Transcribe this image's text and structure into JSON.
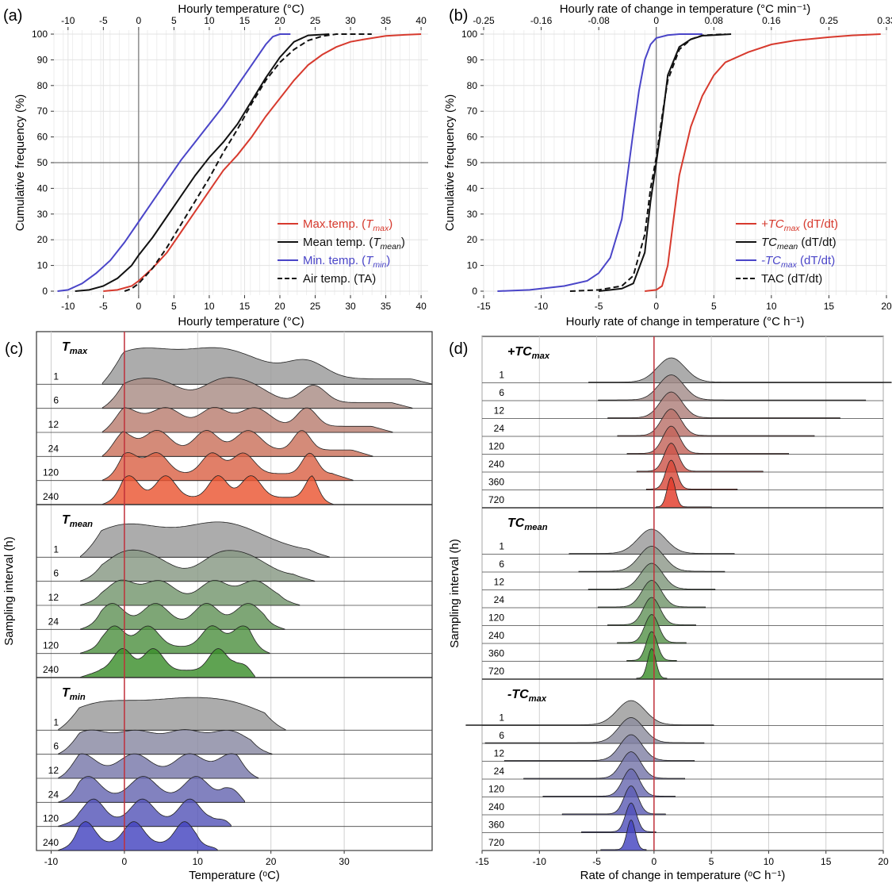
{
  "figure": {
    "panel_labels": [
      "(a)",
      "(b)",
      "(c)",
      "(d)"
    ]
  },
  "colors": {
    "max": "#d73a2e",
    "mean": "#111111",
    "min": "#4a45c8",
    "air": "#111111",
    "ridge_grey": "#8f8f8f",
    "ridge_red": "#e8503a",
    "ridge_green": "#3e8f2f",
    "ridge_blue": "#4747c2",
    "zero_line": "#c0303a"
  },
  "chart_data": [
    {
      "id": "a",
      "type": "line",
      "xlabel": "Hourly temperature (°C)",
      "xlabel_top": "Hourly temperature (°C)",
      "ylabel": "Cumulative frequency (%)",
      "xlim": [
        -12,
        41
      ],
      "ylim": [
        0,
        100
      ],
      "xticks": [
        -10,
        -5,
        0,
        5,
        10,
        15,
        20,
        25,
        30,
        35,
        40
      ],
      "xticks_top": [
        -10,
        -5,
        0,
        5,
        10,
        15,
        20,
        25,
        30,
        35,
        40
      ],
      "yticks": [
        0,
        10,
        20,
        30,
        40,
        50,
        60,
        70,
        80,
        90,
        100
      ],
      "legend_position": "bottom-right",
      "series": [
        {
          "name": "Max.temp. (T_max)",
          "color_key": "max",
          "dash": false,
          "points": [
            [
              -5,
              0
            ],
            [
              -3,
              0.5
            ],
            [
              -1,
              2
            ],
            [
              0,
              4
            ],
            [
              2,
              9
            ],
            [
              4,
              15
            ],
            [
              6,
              23
            ],
            [
              8,
              31
            ],
            [
              10,
              39
            ],
            [
              12,
              47
            ],
            [
              14,
              53
            ],
            [
              16,
              60
            ],
            [
              18,
              68
            ],
            [
              20,
              75
            ],
            [
              22,
              82
            ],
            [
              24,
              88
            ],
            [
              26,
              92
            ],
            [
              28,
              95
            ],
            [
              30,
              97
            ],
            [
              32,
              98
            ],
            [
              35,
              99.3
            ],
            [
              38,
              99.8
            ],
            [
              40,
              100
            ]
          ]
        },
        {
          "name": "Mean temp. (T_mean)",
          "color_key": "mean",
          "dash": false,
          "points": [
            [
              -9,
              0
            ],
            [
              -7,
              0.5
            ],
            [
              -5,
              2
            ],
            [
              -3,
              5
            ],
            [
              -1,
              10
            ],
            [
              0,
              14
            ],
            [
              2,
              21
            ],
            [
              4,
              29
            ],
            [
              6,
              37
            ],
            [
              8,
              45
            ],
            [
              10,
              52
            ],
            [
              12,
              58
            ],
            [
              14,
              65
            ],
            [
              16,
              74
            ],
            [
              18,
              83
            ],
            [
              20,
              91
            ],
            [
              22,
              97
            ],
            [
              24,
              99.5
            ],
            [
              27,
              100
            ]
          ]
        },
        {
          "name": "Min. temp. (T_min)",
          "color_key": "min",
          "dash": false,
          "points": [
            [
              -11.5,
              0
            ],
            [
              -10,
              0.5
            ],
            [
              -8,
              3
            ],
            [
              -6,
              7
            ],
            [
              -4,
              12
            ],
            [
              -2,
              19
            ],
            [
              0,
              27
            ],
            [
              2,
              35
            ],
            [
              4,
              43
            ],
            [
              6,
              51
            ],
            [
              8,
              58
            ],
            [
              10,
              65
            ],
            [
              12,
              72
            ],
            [
              14,
              80
            ],
            [
              16,
              88
            ],
            [
              18,
              96
            ],
            [
              19,
              99
            ],
            [
              20,
              100
            ],
            [
              21.5,
              100
            ]
          ]
        },
        {
          "name": "Air temp. (TA)",
          "color_key": "air",
          "dash": true,
          "points": [
            [
              -2,
              0
            ],
            [
              -1,
              1
            ],
            [
              0,
              3
            ],
            [
              2,
              9
            ],
            [
              4,
              17
            ],
            [
              6,
              26
            ],
            [
              8,
              35
            ],
            [
              10,
              44
            ],
            [
              12,
              54
            ],
            [
              14,
              63
            ],
            [
              16,
              73
            ],
            [
              18,
              82
            ],
            [
              20,
              89
            ],
            [
              22,
              94
            ],
            [
              24,
              97.5
            ],
            [
              26,
              99.2
            ],
            [
              28,
              100
            ],
            [
              33,
              100
            ]
          ]
        }
      ]
    },
    {
      "id": "b",
      "type": "line",
      "xlabel": "Hourly rate of change in temperature (°C h⁻¹)",
      "xlabel_top": "Hourly rate of change in temperature (°C min⁻¹)",
      "ylabel": "Cumulative frequency (%)",
      "xlim": [
        -15,
        20
      ],
      "ylim": [
        0,
        100
      ],
      "xticks": [
        -15,
        -10,
        -5,
        0,
        5,
        10,
        15,
        20
      ],
      "xticks_top": [
        "-0.25",
        "-0.16",
        "-0.08",
        "0",
        "0.08",
        "0.16",
        "0.25",
        "0.33"
      ],
      "yticks": [
        0,
        10,
        20,
        30,
        40,
        50,
        60,
        70,
        80,
        90,
        100
      ],
      "legend_position": "bottom-right",
      "series": [
        {
          "name": "+TC_max (dT/dt)",
          "color_key": "max",
          "dash": false,
          "points": [
            [
              -1,
              0
            ],
            [
              0,
              0.5
            ],
            [
              0.5,
              2
            ],
            [
              1,
              10
            ],
            [
              1.5,
              28
            ],
            [
              2,
              45
            ],
            [
              3,
              64
            ],
            [
              4,
              76
            ],
            [
              5,
              84
            ],
            [
              6,
              89
            ],
            [
              8,
              93
            ],
            [
              10,
              96
            ],
            [
              12,
              97.5
            ],
            [
              15,
              98.8
            ],
            [
              17,
              99.5
            ],
            [
              19.5,
              100
            ]
          ]
        },
        {
          "name": "TC_mean (dT/dt)",
          "color_key": "mean",
          "dash": false,
          "points": [
            [
              -5,
              0
            ],
            [
              -3,
              1
            ],
            [
              -2,
              3
            ],
            [
              -1,
              15
            ],
            [
              -0.5,
              35
            ],
            [
              0,
              50
            ],
            [
              0.5,
              66
            ],
            [
              1,
              84
            ],
            [
              2,
              95
            ],
            [
              3,
              98
            ],
            [
              4,
              99.4
            ],
            [
              6.5,
              100
            ]
          ]
        },
        {
          "name": "-TC_max (dT/dt)",
          "color_key": "min",
          "dash": false,
          "points": [
            [
              -13.8,
              0
            ],
            [
              -11,
              0.5
            ],
            [
              -8,
              2
            ],
            [
              -6,
              4
            ],
            [
              -5,
              7
            ],
            [
              -4,
              13
            ],
            [
              -3,
              28
            ],
            [
              -2.5,
              45
            ],
            [
              -2,
              62
            ],
            [
              -1.5,
              78
            ],
            [
              -1,
              90
            ],
            [
              -0.5,
              96
            ],
            [
              0,
              98.5
            ],
            [
              1,
              99.6
            ],
            [
              2,
              100
            ],
            [
              4,
              100
            ]
          ]
        },
        {
          "name": "TAC (dT/dt)",
          "color_key": "air",
          "dash": true,
          "points": [
            [
              -7.5,
              0
            ],
            [
              -5,
              0.5
            ],
            [
              -3,
              2
            ],
            [
              -2,
              6
            ],
            [
              -1,
              22
            ],
            [
              -0.5,
              40
            ],
            [
              0,
              52
            ],
            [
              0.5,
              68
            ],
            [
              1,
              82
            ],
            [
              2,
              94
            ],
            [
              3,
              98
            ],
            [
              4,
              99.5
            ],
            [
              6,
              100
            ]
          ]
        }
      ]
    },
    {
      "id": "c",
      "type": "area",
      "xlabel": "Temperature (ᵒC)",
      "ylabel": "Sampling interval (h)",
      "xlim": [
        -12,
        42
      ],
      "xticks": [
        -10,
        0,
        10,
        20,
        30
      ],
      "groups": [
        {
          "title": "T_max",
          "ramp": [
            "#9a9a9a",
            "#ea5532"
          ],
          "intervals": [
            "1",
            "6",
            "12",
            "24",
            "120",
            "240"
          ],
          "xrange": [
            -3,
            42
          ],
          "peaks": [
            [
              0,
              8
            ],
            [
              5,
              8
            ],
            [
              12,
              7
            ],
            [
              17,
              8
            ],
            [
              25,
              4
            ]
          ]
        },
        {
          "title": "T_mean",
          "ramp": [
            "#9a9a9a",
            "#3c8f2c"
          ],
          "intervals": [
            "1",
            "6",
            "12",
            "24",
            "120",
            "240"
          ],
          "xrange": [
            -6,
            28
          ],
          "peaks": [
            [
              -1,
              7
            ],
            [
              4,
              8
            ],
            [
              12,
              7
            ],
            [
              17,
              8
            ]
          ]
        },
        {
          "title": "T_min",
          "ramp": [
            "#9a9a9a",
            "#4444c0"
          ],
          "intervals": [
            "1",
            "6",
            "12",
            "24",
            "120",
            "240"
          ],
          "xrange": [
            -9,
            22
          ],
          "peaks": [
            [
              -5,
              7
            ],
            [
              2,
              8
            ],
            [
              9,
              7
            ],
            [
              15,
              7
            ]
          ]
        }
      ]
    },
    {
      "id": "d",
      "type": "area",
      "xlabel": "Rate of change in temperature (ᵒC h⁻¹)",
      "ylabel": "Sampling interval (h)",
      "xlim": [
        -15,
        20
      ],
      "xticks": [
        -15,
        -10,
        -5,
        0,
        5,
        10,
        15,
        20
      ],
      "groups": [
        {
          "title": "+TC_max",
          "ramp": [
            "#9a9a9a",
            "#e23b2a"
          ],
          "intervals": [
            "1",
            "6",
            "12",
            "24",
            "120",
            "240",
            "360",
            "720"
          ],
          "center": 1.5
        },
        {
          "title": "TC_mean",
          "ramp": [
            "#9a9a9a",
            "#3c8f2c"
          ],
          "intervals": [
            "1",
            "6",
            "12",
            "24",
            "120",
            "240",
            "360",
            "720"
          ],
          "center": -0.2
        },
        {
          "title": "-TC_max",
          "ramp": [
            "#9a9a9a",
            "#4444c0"
          ],
          "intervals": [
            "1",
            "6",
            "12",
            "24",
            "120",
            "240",
            "360",
            "720"
          ],
          "center": -2.0
        }
      ]
    }
  ]
}
